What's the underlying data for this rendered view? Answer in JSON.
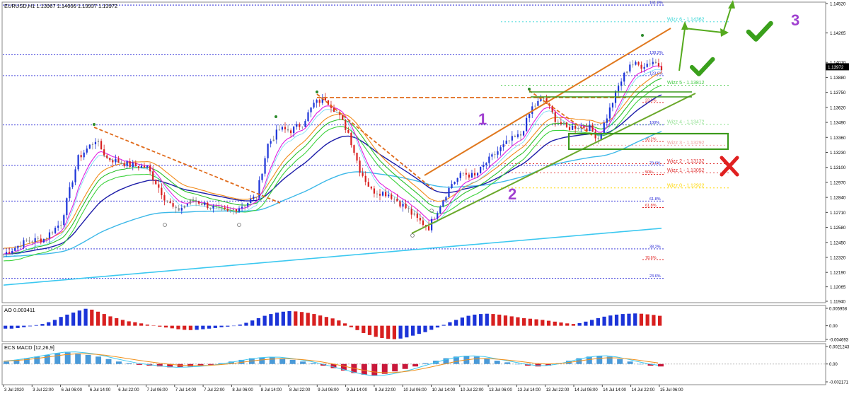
{
  "header": {
    "symbol_line": "EURUSD,H1  1.13967 1.14006 1.13937 1.13972",
    "ao_label": "AO 0.003411",
    "macd_label": "ECS MACD [12,26,9]"
  },
  "price_axis": {
    "ticks": [
      "1.14520",
      "1.14265",
      "1.14010",
      "1.13880",
      "1.13750",
      "1.13620",
      "1.13490",
      "1.13360",
      "1.13230",
      "1.13100",
      "1.12970",
      "1.12840",
      "1.12710",
      "1.12580",
      "1.12450",
      "1.12320",
      "1.12190",
      "1.12065",
      "1.11940"
    ],
    "last_price": "1.13972"
  },
  "ao_axis": {
    "ticks": [
      "0.005958",
      "0.00",
      "-0.004693"
    ]
  },
  "macd_axis": {
    "ticks": [
      "0.0021243",
      "0.00",
      "-0.002171"
    ]
  },
  "time_axis": {
    "labels": [
      "3 Jul 2020",
      "3 Jul 22:00",
      "6 Jul 06:00",
      "6 Jul 14:00",
      "6 Jul 22:00",
      "7 Jul 06:00",
      "7 Jul 14:00",
      "7 Jul 22:00",
      "8 Jul 06:00",
      "8 Jul 14:00",
      "8 Jul 22:00",
      "9 Jul 06:00",
      "9 Jul 14:00",
      "9 Jul 22:00",
      "10 Jul 06:00",
      "10 Jul 14:00",
      "10 Jul 22:00",
      "13 Jul 06:00",
      "13 Jul 14:00",
      "13 Jul 22:00",
      "14 Jul 06:00",
      "14 Jul 14:00",
      "14 Jul 22:00",
      "15 Jul 06:00"
    ]
  },
  "fib_levels_a": [
    {
      "label": "161.8%",
      "price": 1.14507,
      "color": "#2323d6"
    },
    {
      "label": "138.2%",
      "price": 1.14076,
      "color": "#2323d6"
    },
    {
      "label": "123.6%",
      "price": 1.13895,
      "color": "#2323d6"
    },
    {
      "label": "100%",
      "price": 1.13468,
      "color": "#2323d6"
    },
    {
      "label": "78.6%",
      "price": 1.13118,
      "color": "#2323d6"
    },
    {
      "label": "61.8%",
      "price": 1.12808,
      "color": "#2323d6"
    },
    {
      "label": "38.2%",
      "price": 1.12394,
      "color": "#2323d6"
    },
    {
      "label": "23.6%",
      "price": 1.12138,
      "color": "#2323d6"
    }
  ],
  "fib_levels_b": [
    {
      "label": "23.6%",
      "price": 1.13662,
      "color": "#e02020"
    },
    {
      "label": "38.2%",
      "price": 1.13324,
      "color": "#e02020"
    },
    {
      "label": "50%",
      "price": 1.1304,
      "color": "#e02020"
    },
    {
      "label": "61.8%",
      "price": 1.12752,
      "color": "#e02020"
    },
    {
      "label": "78.6%",
      "price": 1.123,
      "color": "#e02020"
    }
  ],
  "wizz_levels": [
    {
      "label": "Wizz 6 - 1.14362",
      "price": 1.14362,
      "color": "#35d6d6"
    },
    {
      "label": "Wizz 5 - 1.13812",
      "price": 1.13812,
      "color": "#3cc83c"
    },
    {
      "label": "Wizz 4 - 1.13472",
      "price": 1.13472,
      "color": "#8fe08f"
    },
    {
      "label": "Wizz 3 - 1.13292",
      "price": 1.13292,
      "color": "#f0a0a0"
    },
    {
      "label": "Wizz 2 - 1.13132",
      "price": 1.13132,
      "color": "#e03030"
    },
    {
      "label": "Wizz 1 - 1.13052",
      "price": 1.13052,
      "color": "#e03030"
    },
    {
      "label": "Wizz 0 - 1.12922",
      "price": 1.12922,
      "color": "#ffd700"
    }
  ],
  "annotations": {
    "wave_1": "1",
    "wave_2": "2",
    "wave_3": "3",
    "wave_color": "#a040d0"
  },
  "chart_data": [
    {
      "type": "candlestick",
      "title": "EURUSD,H1",
      "ylim": [
        1.1194,
        1.1452
      ],
      "overlays": [
        "EMA 21",
        "EMA 144",
        "EMA 8 bands",
        "MA cloud",
        "Fibonacci",
        "Wizz levels"
      ],
      "swing_low": 1.1253,
      "swing_high": 1.142,
      "last": 1.13972
    },
    {
      "type": "bar",
      "title": "AO 0.003411",
      "ylim": [
        -0.004693,
        0.005958
      ],
      "values": [
        -0.001,
        -0.001,
        -0.0008,
        -0.0005,
        -0.0002,
        0.0002,
        0.0006,
        0.0012,
        0.002,
        0.003,
        0.0038,
        0.0045,
        0.0052,
        0.0058,
        0.0055,
        0.0048,
        0.004,
        0.0032,
        0.0026,
        0.002,
        0.0015,
        0.0012,
        0.0008,
        0.0004,
        0.0001,
        -0.0003,
        -0.0006,
        -0.0009,
        -0.0012,
        -0.0014,
        -0.0015,
        -0.0014,
        -0.0012,
        -0.001,
        -0.0008,
        -0.0005,
        -0.0003,
        -0.0001,
        0.0004,
        0.001,
        0.0018,
        0.0026,
        0.0034,
        0.004,
        0.0045,
        0.0048,
        0.005,
        0.0049,
        0.0047,
        0.0044,
        0.004,
        0.0035,
        0.003,
        0.0025,
        0.0018,
        0.0008,
        -0.0005,
        -0.0015,
        -0.0025,
        -0.0032,
        -0.0038,
        -0.0042,
        -0.0045,
        -0.0046,
        -0.0044,
        -0.004,
        -0.0034,
        -0.0028,
        -0.0022,
        -0.0014,
        -0.0006,
        0.0003,
        0.0012,
        0.002,
        0.0028,
        0.0034,
        0.0038,
        0.004,
        0.0041,
        0.004,
        0.0038,
        0.0035,
        0.0032,
        0.0029,
        0.0026,
        0.0024,
        0.0022,
        0.002,
        0.0017,
        0.0014,
        0.0011,
        0.0008,
        0.0006,
        0.0009,
        0.0014,
        0.002,
        0.0026,
        0.0031,
        0.0035,
        0.0038,
        0.004,
        0.0041,
        0.0042,
        0.0041,
        0.0039,
        0.0037,
        0.0034
      ]
    },
    {
      "type": "bar",
      "title": "ECS MACD [12,26,9]",
      "ylim": [
        -0.002171,
        0.0021243
      ],
      "values": [
        0.0003,
        0.0005,
        0.0007,
        0.0009,
        0.0011,
        0.0013,
        0.0014,
        0.0013,
        0.0011,
        0.0009,
        0.0006,
        0.0003,
        0.0001,
        -0.0001,
        -0.0002,
        -0.0003,
        -0.0004,
        -0.0004,
        -0.0003,
        -0.0002,
        -0.0001,
        0.0001,
        0.0003,
        0.0005,
        0.0007,
        0.0008,
        0.0008,
        0.0007,
        0.0005,
        0.0003,
        0.0001,
        -0.0002,
        -0.0005,
        -0.0008,
        -0.0011,
        -0.0013,
        -0.0014,
        -0.0012,
        -0.0009,
        -0.0006,
        -0.0003,
        0.0001,
        0.0004,
        0.0007,
        0.0009,
        0.001,
        0.0009,
        0.0007,
        0.0004,
        0.0002,
        0.0,
        -0.0002,
        -0.0003,
        -0.0002,
        0.0001,
        0.0004,
        0.0007,
        0.0009,
        0.001,
        0.0009,
        0.0006,
        0.0003,
        0.0,
        -0.0002,
        -0.0003
      ]
    }
  ]
}
